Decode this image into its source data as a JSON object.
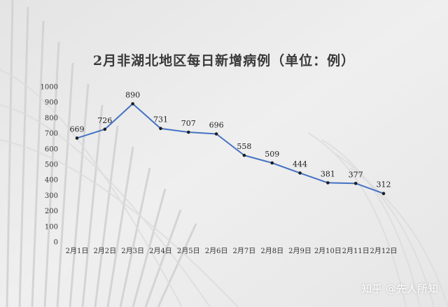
{
  "watermark": "知乎 @先人所知",
  "colors": {
    "line": "#4472c4",
    "point": "#1f1f1f",
    "background": "#ececec"
  },
  "chart_data": {
    "type": "line",
    "title": "2月非湖北地区每日新增病例（单位：例）",
    "xlabel": "",
    "ylabel": "",
    "categories": [
      "2月1日",
      "2月2日",
      "2月3日",
      "2月4日",
      "2月5日",
      "2月6日",
      "2月7日",
      "2月8日",
      "2月9日",
      "2月10日",
      "2月11日",
      "2月12日"
    ],
    "series": [
      {
        "values": [
          669,
          726,
          890,
          731,
          707,
          696,
          558,
          509,
          444,
          381,
          377,
          312
        ]
      }
    ],
    "ylim": [
      0,
      1000
    ],
    "yticks": [
      0,
      100,
      200,
      300,
      400,
      500,
      600,
      700,
      800,
      900,
      1000
    ],
    "grid": false,
    "legend": "none"
  }
}
